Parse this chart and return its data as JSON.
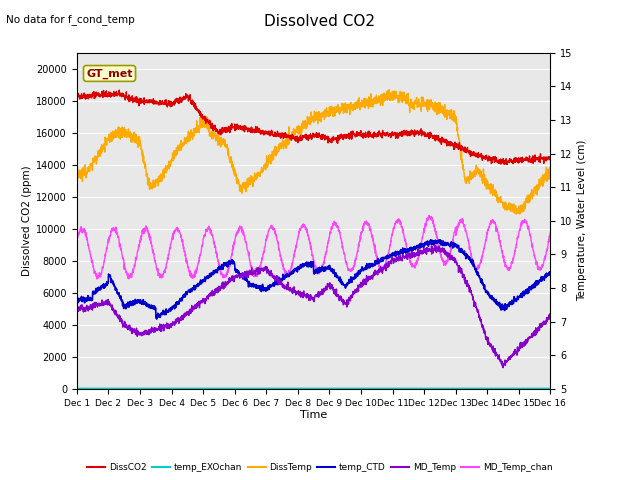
{
  "title": "Dissolved CO2",
  "subtitle": "No data for f_cond_temp",
  "xlabel": "Time",
  "ylabel_left": "Dissolved CO2 (ppm)",
  "ylabel_right": "Temperature, Water Level (cm)",
  "ylim_left": [
    0,
    21000
  ],
  "ylim_right": [
    5.0,
    15.0
  ],
  "yticks_left": [
    0,
    2000,
    4000,
    6000,
    8000,
    10000,
    12000,
    14000,
    16000,
    18000,
    20000
  ],
  "yticks_right": [
    5.0,
    6.0,
    7.0,
    8.0,
    9.0,
    10.0,
    11.0,
    12.0,
    13.0,
    14.0,
    15.0
  ],
  "xmin": 0,
  "xmax": 15,
  "fig_bg_color": "#ffffff",
  "plot_bg_color": "#e8e8e8",
  "annotation_text": "GT_met",
  "annotation_bg": "#ffffcc",
  "annotation_border": "#999900",
  "colors": {
    "DissCO2": "#dd0000",
    "temp_EXOchan": "#00cccc",
    "DissTemp": "#ffaa00",
    "temp_CTD": "#0000cc",
    "MD_Temp": "#8800cc",
    "MD_Temp_chan": "#ff44ff"
  },
  "legend_labels": [
    "DissCO2",
    "temp_EXOchan",
    "DissTemp",
    "temp_CTD",
    "MD_Temp",
    "MD_Temp_chan"
  ],
  "xtick_labels": [
    "Dec 1",
    "Dec 2",
    "Dec 3",
    "Dec 4",
    "Dec 5",
    "Dec 6",
    "Dec 7",
    "Dec 8",
    "Dec 9",
    "Dec 10",
    "Dec 11",
    "Dec 12",
    "Dec 13",
    "Dec 14",
    "Dec 15",
    "Dec 16"
  ]
}
